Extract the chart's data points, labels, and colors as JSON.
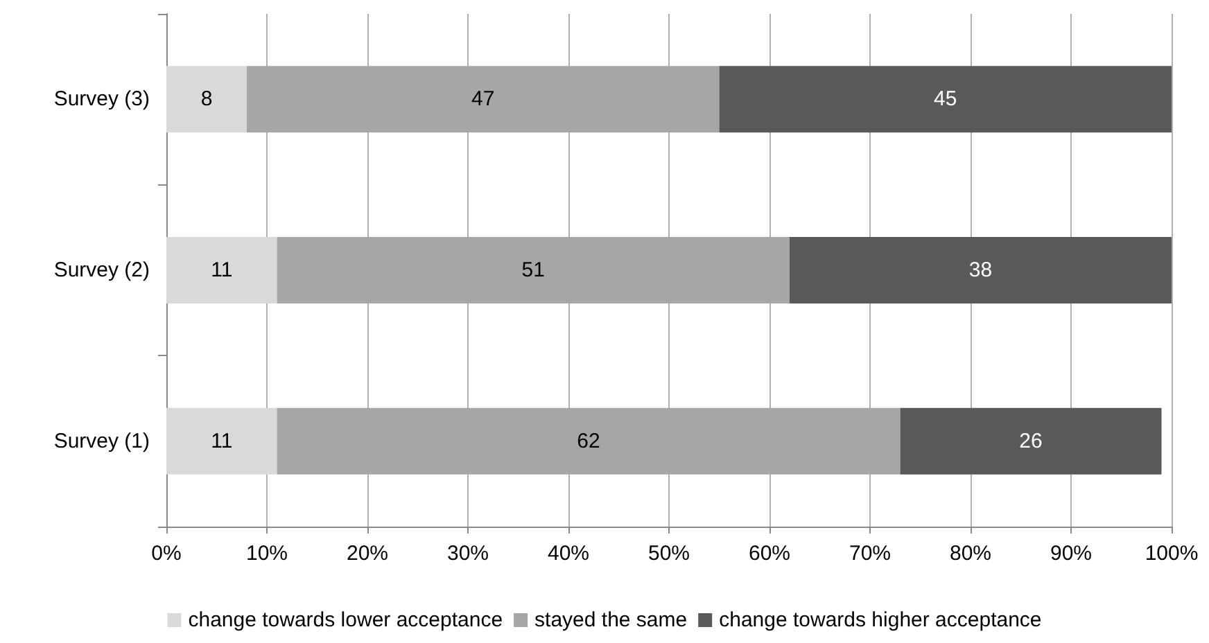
{
  "chart_data": {
    "type": "bar",
    "orientation": "horizontal",
    "stacked": true,
    "categories": [
      "Survey (3)",
      "Survey (2)",
      "Survey (1)"
    ],
    "series": [
      {
        "name": "change towards lower acceptance",
        "color": "#d9d9d9",
        "values": [
          8,
          11,
          11
        ]
      },
      {
        "name": "stayed the same",
        "color": "#a6a6a6",
        "values": [
          47,
          51,
          62
        ]
      },
      {
        "name": "change towards higher acceptance",
        "color": "#595959",
        "values": [
          45,
          38,
          26
        ]
      }
    ],
    "xlim": [
      0,
      100
    ],
    "xticks": [
      {
        "value": 0,
        "label": "0%"
      },
      {
        "value": 10,
        "label": "10%"
      },
      {
        "value": 20,
        "label": "20%"
      },
      {
        "value": 30,
        "label": "30%"
      },
      {
        "value": 40,
        "label": "40%"
      },
      {
        "value": 50,
        "label": "50%"
      },
      {
        "value": 60,
        "label": "60%"
      },
      {
        "value": 70,
        "label": "70%"
      },
      {
        "value": 80,
        "label": "80%"
      },
      {
        "value": 90,
        "label": "90%"
      },
      {
        "value": 100,
        "label": "100%"
      }
    ],
    "grid": "x",
    "legend": "bottom",
    "data_labels": true
  }
}
